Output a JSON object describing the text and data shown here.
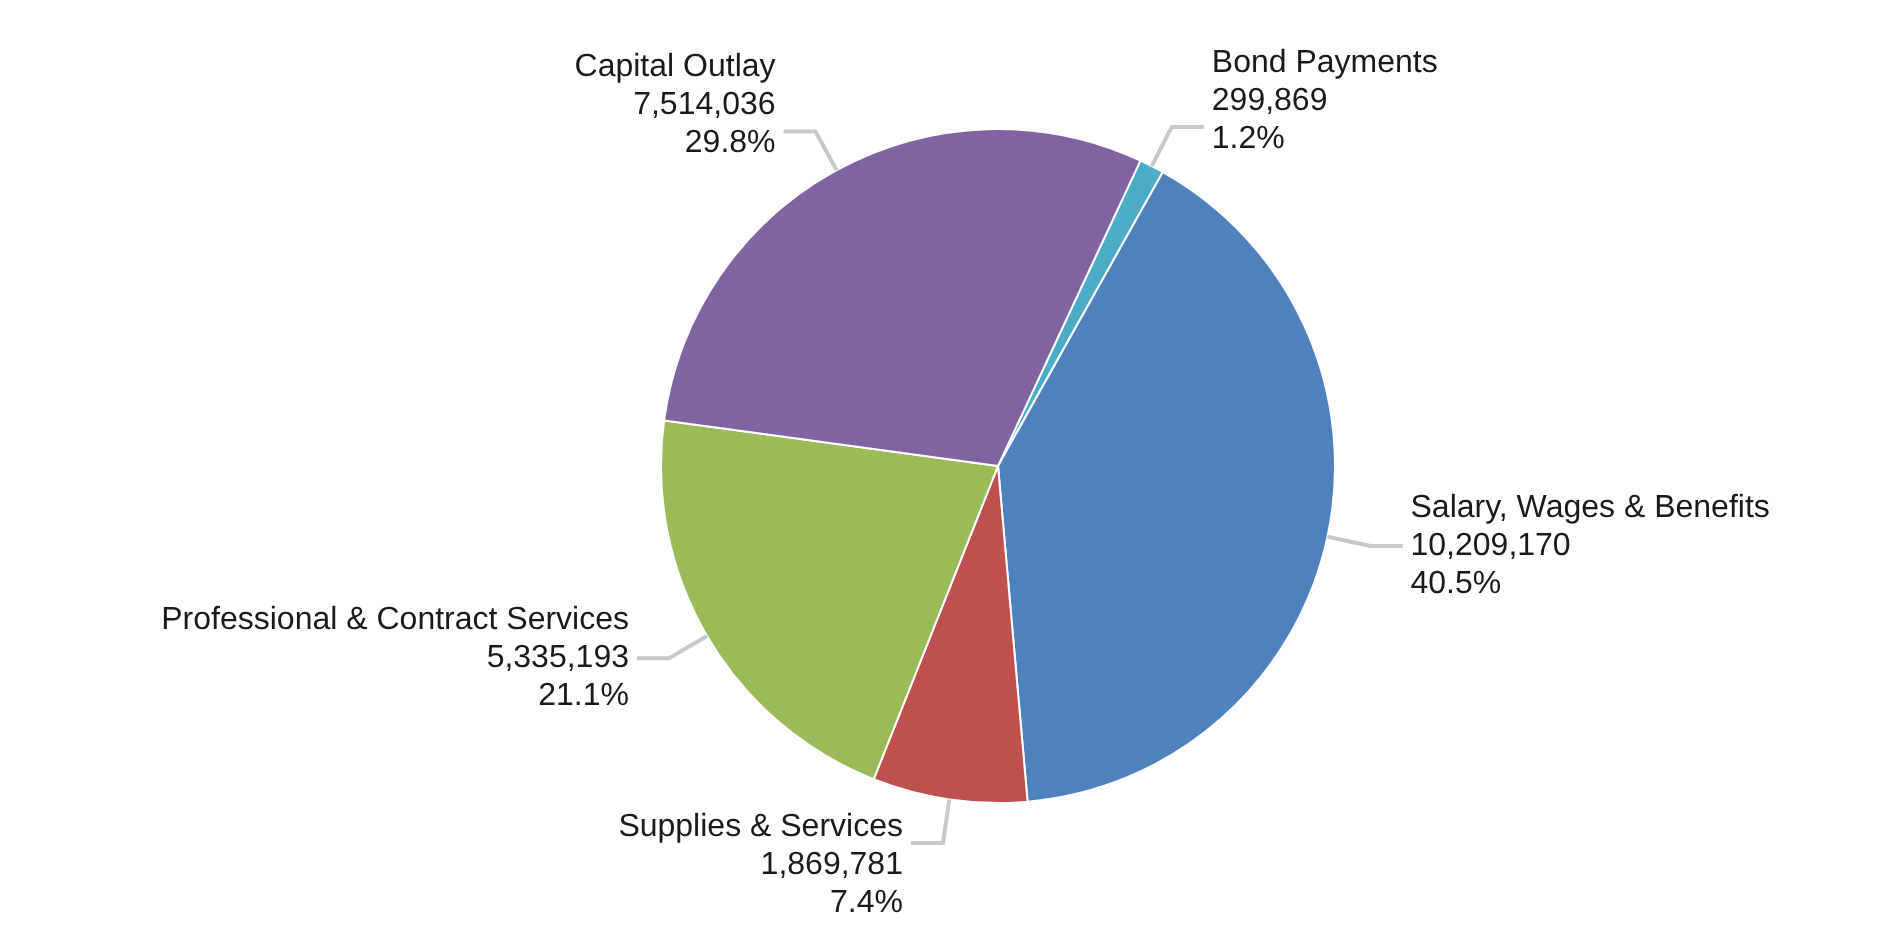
{
  "chart_data": {
    "type": "pie",
    "categories": [
      "Bond Payments",
      "Salary, Wages & Benefits",
      "Supplies & Services",
      "Professional & Contract Services",
      "Capital Outlay"
    ],
    "values": [
      299869,
      10209170,
      1869781,
      5335193,
      7514036
    ],
    "value_labels": [
      "299,869\n1.2%",
      "10,209,170\n40.5%",
      "1,869,781\n7.4%",
      "5,335,193\n21.1%",
      "7,514,036\n29.8%"
    ],
    "colors": [
      "#4bacc6",
      "#4f81bd",
      "#c0504d",
      "#9bbb59",
      "#8064a2"
    ],
    "legend": false
  }
}
